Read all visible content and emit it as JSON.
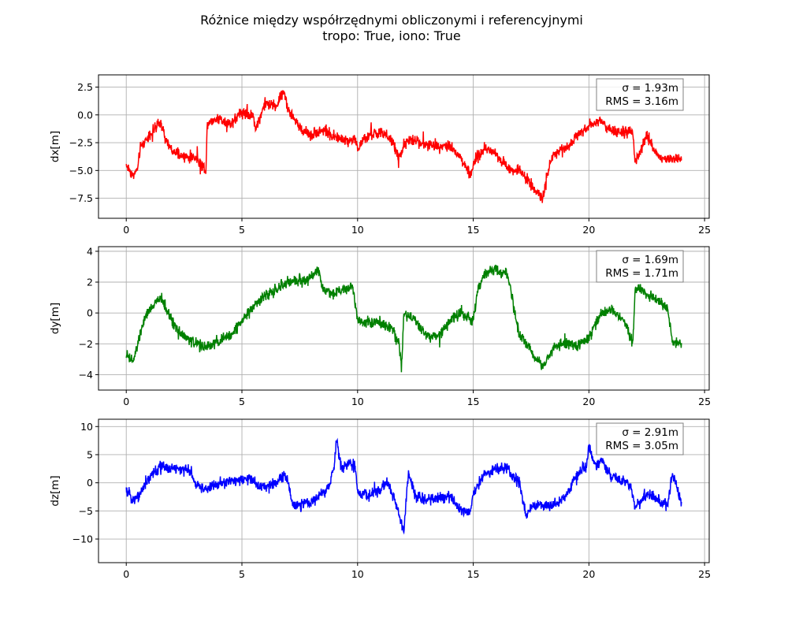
{
  "figure": {
    "title_line1": "Różnice między współrzędnymi obliczonymi i referencyjnymi",
    "title_line2": "tropo: True, iono: True"
  },
  "chart_data": [
    {
      "type": "line",
      "ylabel": "dx[m]",
      "color": "#ff0000",
      "xlim": [
        -1.2,
        25.2
      ],
      "ylim": [
        -9.3,
        3.6
      ],
      "xticks": [
        0,
        5,
        10,
        15,
        20,
        25
      ],
      "yticks": [
        -7.5,
        -5.0,
        -2.5,
        0.0,
        2.5
      ],
      "ytick_labels": [
        "−7.5",
        "−5.0",
        "−2.5",
        "0.0",
        "2.5"
      ],
      "stats": {
        "sigma": "σ = 1.93m",
        "rms": "RMS = 3.16m"
      },
      "series": [
        {
          "x": [
            0,
            0.3,
            0.5,
            0.6,
            1.0,
            1.5,
            1.7,
            2.0,
            2.5,
            3.0,
            3.45,
            3.5,
            4.0,
            4.5,
            5.0,
            5.5,
            5.6,
            6.0,
            6.5,
            6.8,
            7.0,
            7.5,
            8.0,
            8.5,
            9.0,
            9.5,
            9.9,
            10.0,
            10.5,
            11.0,
            11.5,
            11.8,
            12.0,
            12.5,
            13.0,
            13.5,
            14.0,
            14.5,
            14.9,
            15.0,
            15.5,
            16.0,
            16.5,
            17.0,
            17.5,
            18.0,
            18.3,
            18.5,
            19.0,
            19.5,
            20.0,
            20.5,
            21.0,
            21.5,
            21.9,
            22.0,
            22.5,
            23.0,
            23.5,
            24.0
          ],
          "y": [
            -4.5,
            -5.5,
            -4.8,
            -3.0,
            -1.8,
            -0.7,
            -2.3,
            -3.3,
            -3.8,
            -3.8,
            -5.0,
            -0.7,
            -0.3,
            -0.8,
            0.3,
            -0.2,
            -1.2,
            1.0,
            0.8,
            2.2,
            0.5,
            -1.2,
            -1.8,
            -1.3,
            -2.0,
            -2.3,
            -2.2,
            -3.0,
            -1.8,
            -1.6,
            -2.3,
            -4.0,
            -2.6,
            -2.3,
            -2.7,
            -2.8,
            -2.7,
            -4.0,
            -5.5,
            -4.3,
            -3.0,
            -3.5,
            -4.8,
            -5.0,
            -6.2,
            -7.6,
            -4.5,
            -3.5,
            -3.0,
            -1.8,
            -0.9,
            -0.5,
            -1.5,
            -1.6,
            -1.6,
            -4.5,
            -1.8,
            -3.8,
            -4.0,
            -3.8
          ]
        }
      ]
    },
    {
      "type": "line",
      "ylabel": "dy[m]",
      "color": "#008000",
      "xlim": [
        -1.2,
        25.2
      ],
      "ylim": [
        -5.0,
        4.3
      ],
      "xticks": [
        0,
        5,
        10,
        15,
        20,
        25
      ],
      "yticks": [
        -4,
        -2,
        0,
        2,
        4
      ],
      "ytick_labels": [
        "−4",
        "−2",
        "0",
        "2",
        "4"
      ],
      "stats": {
        "sigma": "σ = 1.69m",
        "rms": "RMS = 1.71m"
      },
      "series": [
        {
          "x": [
            0,
            0.3,
            0.5,
            0.7,
            1.0,
            1.5,
            2.0,
            2.5,
            3.0,
            3.5,
            4.0,
            4.5,
            5.0,
            5.5,
            6.0,
            6.5,
            7.0,
            7.5,
            8.0,
            8.3,
            8.5,
            9.0,
            9.5,
            9.8,
            10.0,
            10.5,
            11.0,
            11.5,
            11.8,
            11.9,
            12.0,
            12.5,
            13.0,
            13.5,
            14.0,
            14.5,
            15.0,
            15.2,
            15.5,
            16.0,
            16.5,
            16.7,
            17.0,
            17.5,
            18.0,
            18.5,
            19.0,
            19.5,
            20.0,
            20.5,
            21.0,
            21.5,
            21.9,
            22.0,
            22.2,
            22.5,
            23.0,
            23.4,
            23.6,
            24.0
          ],
          "y": [
            -2.7,
            -3.2,
            -2.0,
            -0.8,
            0.2,
            1.0,
            -0.6,
            -1.5,
            -2.0,
            -2.2,
            -1.8,
            -1.5,
            -0.5,
            0.5,
            1.1,
            1.5,
            2.0,
            2.1,
            2.3,
            2.9,
            1.5,
            1.3,
            1.6,
            1.8,
            -0.5,
            -0.6,
            -0.6,
            -1.0,
            -2.0,
            -3.6,
            0.0,
            -0.5,
            -1.5,
            -1.5,
            -0.5,
            0.0,
            -0.4,
            1.5,
            2.5,
            2.8,
            2.4,
            0.8,
            -1.5,
            -2.5,
            -3.5,
            -2.2,
            -2.0,
            -2.1,
            -1.7,
            0.0,
            0.2,
            -0.5,
            -2.0,
            1.5,
            1.6,
            1.2,
            0.7,
            0.3,
            -1.8,
            -2.0
          ]
        }
      ]
    },
    {
      "type": "line",
      "ylabel": "dz[m]",
      "color": "#0000ff",
      "xlim": [
        -1.2,
        25.2
      ],
      "ylim": [
        -14.2,
        11.3
      ],
      "xticks": [
        0,
        5,
        10,
        15,
        20,
        25
      ],
      "yticks": [
        -10,
        -5,
        0,
        5,
        10
      ],
      "ytick_labels": [
        "−10",
        "−5",
        "0",
        "5",
        "10"
      ],
      "stats": {
        "sigma": "σ = 2.91m",
        "rms": "RMS = 3.05m"
      },
      "series": [
        {
          "x": [
            0,
            0.3,
            0.5,
            1.0,
            1.5,
            2.0,
            2.5,
            2.8,
            3.0,
            3.5,
            4.0,
            4.5,
            5.0,
            5.5,
            6.0,
            6.5,
            6.8,
            7.0,
            7.2,
            7.5,
            8.0,
            8.5,
            8.8,
            9.0,
            9.1,
            9.3,
            9.6,
            9.9,
            10.0,
            10.5,
            11.0,
            11.3,
            11.6,
            11.8,
            12.0,
            12.2,
            12.5,
            13.0,
            13.5,
            14.0,
            14.5,
            14.9,
            15.0,
            15.5,
            16.0,
            16.5,
            17.0,
            17.3,
            17.5,
            18.0,
            18.5,
            19.0,
            19.5,
            19.9,
            20.0,
            20.3,
            20.5,
            21.0,
            21.5,
            21.8,
            22.0,
            22.5,
            23.0,
            23.4,
            23.6,
            24.0
          ],
          "y": [
            -1.5,
            -2.8,
            -2.5,
            1.0,
            3.0,
            2.5,
            2.3,
            2.0,
            -0.5,
            -1.0,
            -0.2,
            0.2,
            0.8,
            0.3,
            -1.0,
            0.3,
            1.5,
            0.0,
            -4.0,
            -4.0,
            -3.5,
            -1.8,
            -0.5,
            3.5,
            8.0,
            2.5,
            3.5,
            3.0,
            -2.0,
            -2.3,
            -1.0,
            0.0,
            -3.0,
            -6.0,
            -8.5,
            2.0,
            -2.5,
            -3.0,
            -2.8,
            -2.3,
            -5.0,
            -5.0,
            -2.0,
            1.5,
            2.5,
            2.3,
            0.0,
            -6.0,
            -4.0,
            -4.2,
            -4.0,
            -2.5,
            1.5,
            3.0,
            6.5,
            2.5,
            4.0,
            1.0,
            0.3,
            -0.5,
            -4.5,
            -2.0,
            -3.0,
            -4.0,
            1.8,
            -3.5
          ]
        }
      ]
    }
  ]
}
